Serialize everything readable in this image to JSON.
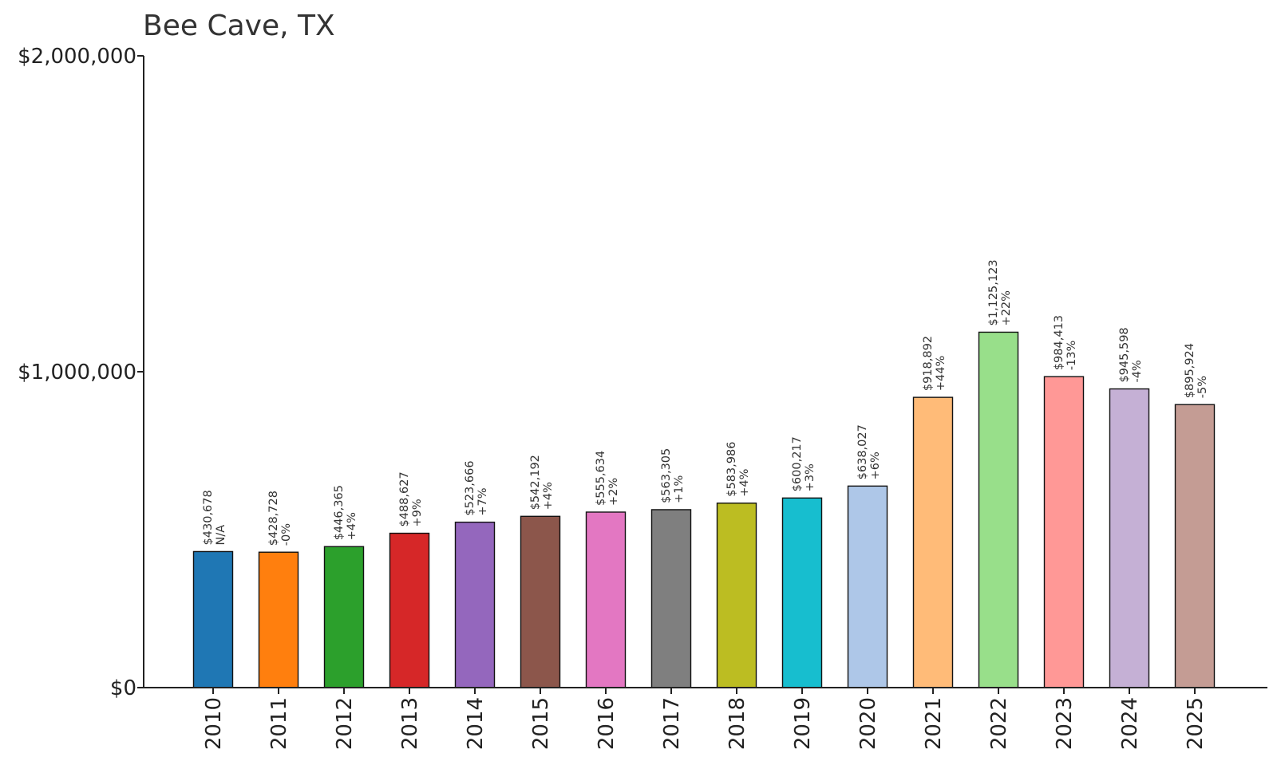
{
  "chart_data": {
    "type": "bar",
    "title": "Bee Cave, TX",
    "xlabel": "",
    "ylabel": "",
    "ylim": [
      0,
      2000000
    ],
    "yticks": [
      0,
      1000000,
      2000000
    ],
    "ytick_labels": [
      "$0",
      "$1,000,000",
      "$2,000,000"
    ],
    "grid": false,
    "categories": [
      "2010",
      "2011",
      "2012",
      "2013",
      "2014",
      "2015",
      "2016",
      "2017",
      "2018",
      "2019",
      "2020",
      "2021",
      "2022",
      "2023",
      "2024",
      "2025"
    ],
    "values": [
      430678,
      428728,
      446365,
      488627,
      523666,
      542192,
      555634,
      563305,
      583986,
      600217,
      638027,
      918892,
      1125123,
      984413,
      945598,
      895924
    ],
    "value_labels": [
      "$430,678",
      "$428,728",
      "$446,365",
      "$488,627",
      "$523,666",
      "$542,192",
      "$555,634",
      "$563,305",
      "$583,986",
      "$600,217",
      "$638,027",
      "$918,892",
      "$1,125,123",
      "$984,413",
      "$945,598",
      "$895,924"
    ],
    "change_labels": [
      "N/A",
      "-0%",
      "+4%",
      "+9%",
      "+7%",
      "+4%",
      "+2%",
      "+1%",
      "+4%",
      "+3%",
      "+6%",
      "+44%",
      "+22%",
      "-13%",
      "-4%",
      "-5%"
    ],
    "colors": [
      "#1f77b4",
      "#ff7f0e",
      "#2ca02c",
      "#d62728",
      "#9467bd",
      "#8c564b",
      "#e377c2",
      "#7f7f7f",
      "#bcbd22",
      "#17becf",
      "#aec7e8",
      "#ffbb78",
      "#98df8a",
      "#ff9896",
      "#c5b0d5",
      "#c49c94"
    ]
  }
}
